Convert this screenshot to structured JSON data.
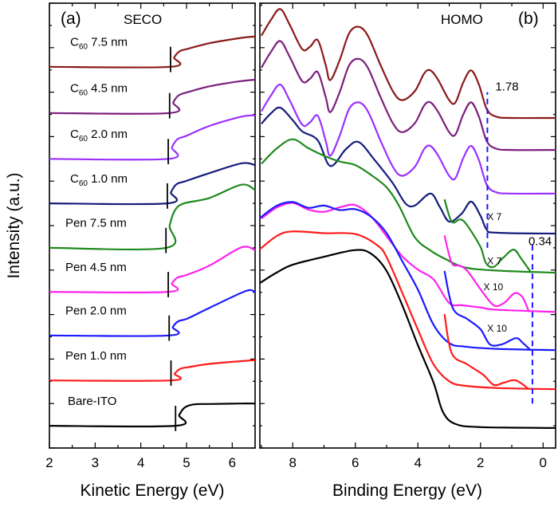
{
  "chart_data": [
    {
      "panel": "(a)",
      "title": "SECO",
      "type": "line",
      "xlabel": "Kinetic Energy (eV)",
      "ylabel": "Intensity (a.u.)",
      "xlim": [
        2,
        6.5
      ],
      "ylim": [
        0,
        10
      ],
      "xticks": [
        2,
        3,
        4,
        5,
        6
      ],
      "grid": false,
      "series": [
        {
          "name": "C60 7.5 nm",
          "label": {
            "main": "C",
            "sub": "60",
            "rest": " 7.5 nm"
          },
          "color": "#8B1A1A",
          "cutoff": 4.65,
          "x": [
            2,
            4.65,
            4.73,
            4.85,
            5.05,
            5.5,
            6.2,
            6.5
          ],
          "y": [
            8.57,
            8.57,
            8.78,
            8.92,
            8.98,
            9.1,
            9.22,
            9.25
          ]
        },
        {
          "name": "C60 4.5 nm",
          "label": {
            "main": "C",
            "sub": "60",
            "rest": " 4.5 nm"
          },
          "color": "#7B1F7B",
          "cutoff": 4.63,
          "x": [
            2,
            4.63,
            4.71,
            4.83,
            5.03,
            5.5,
            6.2,
            6.5
          ],
          "y": [
            7.53,
            7.53,
            7.77,
            7.93,
            8.0,
            8.13,
            8.25,
            8.28
          ]
        },
        {
          "name": "C60 2.0 nm",
          "label": {
            "main": "C",
            "sub": "60",
            "rest": " 2.0 nm"
          },
          "color": "#9B30FF",
          "cutoff": 4.6,
          "x": [
            2,
            4.6,
            4.68,
            4.8,
            5.0,
            5.5,
            6.2,
            6.5
          ],
          "y": [
            6.5,
            6.5,
            6.76,
            6.94,
            7.02,
            7.24,
            7.45,
            7.48
          ]
        },
        {
          "name": "C60 1.0 nm",
          "label": {
            "main": "C",
            "sub": "60",
            "rest": " 1.0 nm"
          },
          "color": "#141B7A",
          "cutoff": 4.58,
          "x": [
            2,
            4.58,
            4.66,
            4.78,
            4.98,
            5.5,
            6.2,
            6.5
          ],
          "y": [
            5.5,
            5.5,
            5.75,
            5.93,
            6.0,
            6.18,
            6.4,
            6.36
          ]
        },
        {
          "name": "Pen 7.5 nm",
          "label": {
            "main": "Pen 7.5 nm",
            "sub": "",
            "rest": ""
          },
          "color": "#1E8A1E",
          "cutoff": 4.55,
          "x": [
            2,
            4.55,
            4.63,
            4.75,
            4.95,
            5.5,
            6.2,
            6.5
          ],
          "y": [
            4.5,
            4.5,
            5.0,
            5.35,
            5.5,
            5.62,
            5.92,
            5.8
          ]
        },
        {
          "name": "Pen 4.5 nm",
          "label": {
            "main": "Pen 4.5 nm",
            "sub": "",
            "rest": ""
          },
          "color": "#FF22EE",
          "cutoff": 4.6,
          "x": [
            2,
            4.6,
            4.68,
            4.8,
            5.0,
            5.5,
            6.2,
            6.5
          ],
          "y": [
            3.51,
            3.51,
            3.7,
            3.83,
            3.89,
            4.1,
            4.51,
            4.45
          ]
        },
        {
          "name": "Pen 2.0 nm",
          "label": {
            "main": "Pen 2.0 nm",
            "sub": "",
            "rest": ""
          },
          "color": "#1A1AFF",
          "cutoff": 4.62,
          "x": [
            2,
            4.62,
            4.7,
            4.82,
            5.02,
            5.5,
            6.3,
            6.5
          ],
          "y": [
            2.53,
            2.53,
            2.72,
            2.85,
            2.91,
            3.15,
            3.53,
            3.5
          ]
        },
        {
          "name": "Pen 1.0 nm",
          "label": {
            "main": "Pen 1.0 nm",
            "sub": "",
            "rest": ""
          },
          "color": "#FF1A1A",
          "cutoff": 4.66,
          "x": [
            2,
            4.66,
            4.74,
            4.86,
            5.06,
            5.5,
            6.4,
            6.5
          ],
          "y": [
            1.52,
            1.52,
            1.67,
            1.78,
            1.82,
            1.89,
            1.97,
            1.97
          ]
        },
        {
          "name": "Bare-ITO",
          "label": {
            "main": "Bare-ITO",
            "sub": "",
            "rest": ""
          },
          "color": "#000000",
          "cutoff": 4.76,
          "x": [
            2,
            4.76,
            4.84,
            4.96,
            5.16,
            5.5,
            6.2,
            6.5
          ],
          "y": [
            0.5,
            0.5,
            0.74,
            0.91,
            0.98,
            0.99,
            1.0,
            1.0
          ]
        }
      ]
    },
    {
      "panel": "(b)",
      "title": "HOMO",
      "type": "line",
      "xlabel": "Binding Energy (eV)",
      "xlim": [
        9.05,
        -0.4
      ],
      "ylim": [
        0,
        10
      ],
      "xticks": [
        8,
        6,
        4,
        2,
        0
      ],
      "x_reversed": true,
      "grid": false,
      "series": [
        {
          "color": "#8B1A1A",
          "x": [
            9.0,
            8.7,
            8.4,
            8.1,
            7.7,
            7.45,
            7.2,
            6.95,
            6.8,
            6.5,
            6.2,
            5.9,
            5.6,
            5.2,
            4.8,
            4.5,
            4.1,
            3.8,
            3.6,
            3.35,
            3.0,
            2.8,
            2.55,
            2.3,
            2.05,
            1.8,
            1.5,
            1.0,
            -0.4
          ],
          "y": [
            9.27,
            9.62,
            9.87,
            9.52,
            8.97,
            9.02,
            9.17,
            8.62,
            8.27,
            8.72,
            9.32,
            9.47,
            9.27,
            8.62,
            8.02,
            7.82,
            8.02,
            8.42,
            8.49,
            8.27,
            7.82,
            7.77,
            8.22,
            8.49,
            8.17,
            7.62,
            7.45,
            7.42,
            7.42
          ]
        },
        {
          "color": "#7B1F7B",
          "x": [
            9.0,
            8.7,
            8.4,
            8.1,
            7.7,
            7.45,
            7.2,
            6.95,
            6.8,
            6.5,
            6.2,
            5.9,
            5.6,
            5.2,
            4.8,
            4.5,
            4.1,
            3.8,
            3.6,
            3.35,
            3.0,
            2.8,
            2.55,
            2.3,
            2.05,
            1.8,
            1.5,
            1.0,
            -0.4
          ],
          "y": [
            8.55,
            8.9,
            9.15,
            8.8,
            8.25,
            8.3,
            8.45,
            7.9,
            7.55,
            8.0,
            8.6,
            8.75,
            8.55,
            7.9,
            7.3,
            7.1,
            7.3,
            7.7,
            7.77,
            7.55,
            7.1,
            7.05,
            7.5,
            7.77,
            7.45,
            6.9,
            6.73,
            6.7,
            6.7
          ]
        },
        {
          "color": "#9B30FF",
          "x": [
            9.0,
            8.7,
            8.4,
            8.1,
            7.7,
            7.45,
            7.2,
            6.95,
            6.8,
            6.5,
            6.2,
            5.9,
            5.6,
            5.2,
            4.8,
            4.5,
            4.1,
            3.8,
            3.6,
            3.35,
            3.0,
            2.8,
            2.55,
            2.3,
            2.05,
            1.8,
            1.5,
            1.0,
            -0.4
          ],
          "y": [
            7.57,
            7.92,
            8.17,
            7.82,
            7.27,
            7.32,
            7.47,
            6.92,
            6.57,
            7.02,
            7.62,
            7.77,
            7.57,
            6.92,
            6.32,
            6.12,
            6.32,
            6.72,
            6.79,
            6.57,
            6.12,
            6.07,
            6.52,
            6.79,
            6.47,
            5.92,
            5.75,
            5.72,
            5.72
          ]
        },
        {
          "color": "#141B7A",
          "x": [
            9.0,
            8.7,
            8.4,
            8.0,
            7.7,
            7.2,
            6.8,
            6.3,
            5.9,
            5.4,
            4.8,
            4.4,
            4.1,
            3.6,
            3.3,
            3.0,
            2.6,
            2.3,
            2.0,
            1.8,
            1.5,
            -0.4
          ],
          "y": [
            7.29,
            7.52,
            7.65,
            7.37,
            7.12,
            6.92,
            6.34,
            6.72,
            6.88,
            6.49,
            5.95,
            5.5,
            5.45,
            5.72,
            5.42,
            5.09,
            5.27,
            5.54,
            5.22,
            4.91,
            4.84,
            4.82
          ]
        },
        {
          "color": "#1E8A1E",
          "x": [
            9.0,
            8.5,
            8.0,
            7.5,
            7.0,
            6.5,
            6.0,
            5.5,
            5.0,
            4.6,
            4.1,
            3.6,
            3.1,
            2.5,
            1.5,
            -0.4
          ],
          "y": [
            6.39,
            6.74,
            6.94,
            6.74,
            6.57,
            6.44,
            6.36,
            6.14,
            5.86,
            5.44,
            4.74,
            4.44,
            4.24,
            4.06,
            3.99,
            3.94
          ],
          "magnified": {
            "factor": "X 7",
            "x": [
              3.15,
              2.92,
              2.64,
              2.42,
              2.0,
              1.83,
              1.58,
              1.27,
              0.94,
              0.69,
              0.38
            ],
            "y": [
              5.59,
              5.09,
              5.14,
              5.0,
              4.52,
              4.16,
              4.07,
              4.28,
              4.46,
              4.25,
              3.94
            ]
          }
        },
        {
          "color": "#FF22EE",
          "x": [
            9,
            8.5,
            8,
            7.5,
            7,
            6.5,
            6,
            5.5,
            5,
            4.5,
            4,
            3.5,
            3.0,
            2.6,
            2.0,
            1.5,
            -0.4
          ],
          "y": [
            5.16,
            5.41,
            5.51,
            5.36,
            5.31,
            5.41,
            5.46,
            5.21,
            4.76,
            4.31,
            4.01,
            3.79,
            3.26,
            3.21,
            3.16,
            3.11,
            3.06
          ],
          "magnified": {
            "factor": "X 7",
            "x": [
              3.15,
              2.92,
              2.66,
              2.42,
              2.0,
              1.58,
              1.25,
              0.91,
              0.66,
              0.45
            ],
            "y": [
              4.78,
              4.16,
              4.1,
              3.98,
              3.57,
              3.21,
              3.26,
              3.48,
              3.39,
              3.06
            ]
          }
        },
        {
          "color": "#1A1AFF",
          "x": [
            9.05,
            8.5,
            8,
            7.5,
            7,
            6.5,
            6,
            5.5,
            5,
            4.5,
            4,
            3.5,
            3,
            2.5,
            1.5,
            -0.4
          ],
          "y": [
            5.17,
            5.45,
            5.53,
            5.4,
            5.45,
            5.35,
            5.37,
            5.2,
            4.83,
            4.2,
            3.56,
            2.77,
            2.36,
            2.28,
            2.23,
            2.2
          ],
          "magnified": {
            "factor": "X 10",
            "x": [
              3.15,
              2.88,
              2.42,
              2.0,
              1.7,
              1.32,
              0.87,
              0.66,
              0.4
            ],
            "y": [
              3.98,
              3.14,
              2.9,
              2.67,
              2.33,
              2.33,
              2.47,
              2.37,
              2.2
            ]
          }
        },
        {
          "color": "#FF1A1A",
          "x": [
            9.05,
            8.5,
            8,
            7,
            6,
            5.3,
            5,
            4.5,
            4,
            3.5,
            3,
            2.5,
            1.5,
            -0.4
          ],
          "y": [
            4.47,
            4.77,
            4.87,
            4.83,
            4.81,
            4.56,
            4.29,
            3.49,
            2.66,
            1.88,
            1.5,
            1.4,
            1.35,
            1.32
          ],
          "magnified": {
            "factor": "X 10",
            "x": [
              3.15,
              2.92,
              2.42,
              1.92,
              1.58,
              1.25,
              0.87,
              0.45
            ],
            "y": [
              3.01,
              2.13,
              1.88,
              1.65,
              1.42,
              1.47,
              1.52,
              1.32
            ]
          }
        },
        {
          "color": "#000000",
          "x": [
            9.05,
            8.5,
            8,
            7,
            6,
            5.5,
            5,
            4.5,
            4,
            3.5,
            3.2,
            2.8,
            2.0,
            -0.4
          ],
          "y": [
            3.71,
            3.95,
            4.12,
            4.3,
            4.45,
            4.37,
            3.98,
            3.21,
            2.31,
            1.47,
            0.81,
            0.54,
            0.47,
            0.45
          ]
        }
      ],
      "annotations": [
        {
          "text": "1.78",
          "x": 1.78,
          "ymin": 4.5,
          "ymax": 8.0,
          "color": "#1A1AFF"
        },
        {
          "text": "0.34",
          "x": 0.34,
          "ymin": 1.0,
          "ymax": 4.6,
          "color": "#1A1AFF"
        }
      ]
    }
  ]
}
